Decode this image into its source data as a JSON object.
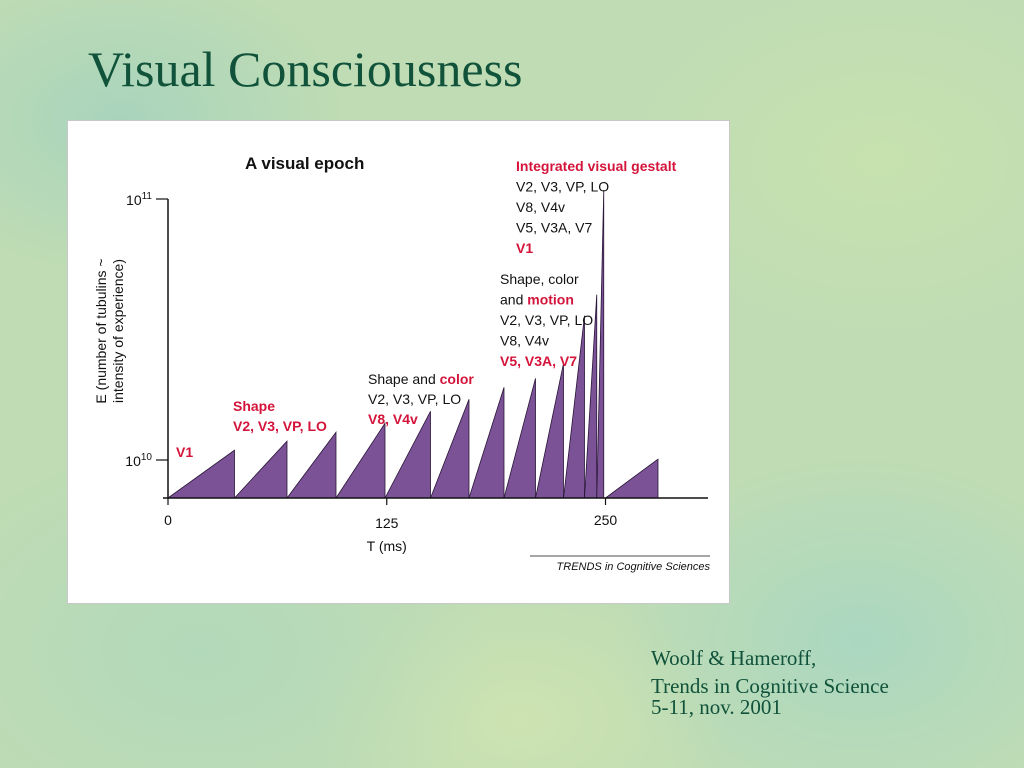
{
  "slide": {
    "title": "Visual Consciousness",
    "citation": {
      "line1": "Woolf & Hameroff,",
      "line2": "Trends in Cognitive Science",
      "line3": "5-11, nov. 2001"
    }
  },
  "colors": {
    "title_text": "#10523a",
    "bar_fill": "#7b5296",
    "highlight_text": "#d4143a",
    "body_text": "#111111"
  },
  "chart_data": {
    "type": "area",
    "title": "A visual epoch",
    "xlabel": "T (ms)",
    "ylabel_line1": "E (number of tubulins ~",
    "ylabel_line2": "intensity of experience)",
    "source": "TRENDS in Cognitive Sciences",
    "x_ticks": [
      "0",
      "125",
      "250"
    ],
    "y_ticks": [
      {
        "base": "10",
        "exp": "10"
      },
      {
        "base": "10",
        "exp": "11"
      }
    ],
    "xlim": [
      0,
      280
    ],
    "y_scale": "log",
    "grid": false,
    "series": [
      {
        "values": [
          [
            [
              0,
              0.0
            ],
            [
              38,
              0.16
            ]
          ],
          [
            [
              38,
              0.0
            ],
            [
              68,
              0.19
            ]
          ],
          [
            [
              68,
              0.0
            ],
            [
              96,
              0.22
            ]
          ],
          [
            [
              96,
              0.0
            ],
            [
              124,
              0.25
            ]
          ],
          [
            [
              124,
              0.0
            ],
            [
              150,
              0.29
            ]
          ],
          [
            [
              150,
              0.0
            ],
            [
              172,
              0.33
            ]
          ],
          [
            [
              172,
              0.0
            ],
            [
              192,
              0.37
            ]
          ],
          [
            [
              192,
              0.0
            ],
            [
              210,
              0.4
            ]
          ],
          [
            [
              210,
              0.0
            ],
            [
              226,
              0.45
            ]
          ],
          [
            [
              226,
              0.0
            ],
            [
              238,
              0.61
            ]
          ],
          [
            [
              238,
              0.0
            ],
            [
              245,
              0.68
            ]
          ],
          [
            [
              245,
              0.0
            ],
            [
              249,
              1.03
            ]
          ],
          [
            [
              250,
              0.0
            ],
            [
              280,
              0.13
            ]
          ]
        ]
      }
    ],
    "annotations": [
      {
        "lines": [
          {
            "parts": [
              {
                "text": "V1",
                "color": "red"
              }
            ]
          }
        ]
      },
      {
        "lines": [
          {
            "parts": [
              {
                "text": "Shape",
                "color": "red"
              }
            ]
          },
          {
            "parts": [
              {
                "text": "V2, V3, VP, LO",
                "color": "red"
              }
            ]
          }
        ]
      },
      {
        "lines": [
          {
            "parts": [
              {
                "text": "Shape and ",
                "color": "black"
              },
              {
                "text": "color",
                "color": "red"
              }
            ]
          },
          {
            "parts": [
              {
                "text": "V2, V3, VP, LO",
                "color": "black"
              }
            ]
          },
          {
            "parts": [
              {
                "text": "V8, V4v",
                "color": "red"
              }
            ]
          }
        ]
      },
      {
        "lines": [
          {
            "parts": [
              {
                "text": "Shape, color",
                "color": "black"
              }
            ]
          },
          {
            "parts": [
              {
                "text": "and ",
                "color": "black"
              },
              {
                "text": "motion",
                "color": "red"
              }
            ]
          },
          {
            "parts": [
              {
                "text": "V2, V3, VP, LO",
                "color": "black"
              }
            ]
          },
          {
            "parts": [
              {
                "text": "V8, V4v",
                "color": "black"
              }
            ]
          },
          {
            "parts": [
              {
                "text": "V5, V3A, V7",
                "color": "red"
              }
            ]
          }
        ]
      },
      {
        "lines": [
          {
            "parts": [
              {
                "text": "Integrated visual gestalt",
                "color": "red"
              }
            ]
          },
          {
            "parts": [
              {
                "text": "V2, V3, VP, LO",
                "color": "black"
              }
            ]
          },
          {
            "parts": [
              {
                "text": "V8, V4v",
                "color": "black"
              }
            ]
          },
          {
            "parts": [
              {
                "text": "V5, V3A, V7",
                "color": "black"
              }
            ]
          },
          {
            "parts": [
              {
                "text": "V1",
                "color": "red"
              }
            ]
          }
        ]
      }
    ]
  }
}
